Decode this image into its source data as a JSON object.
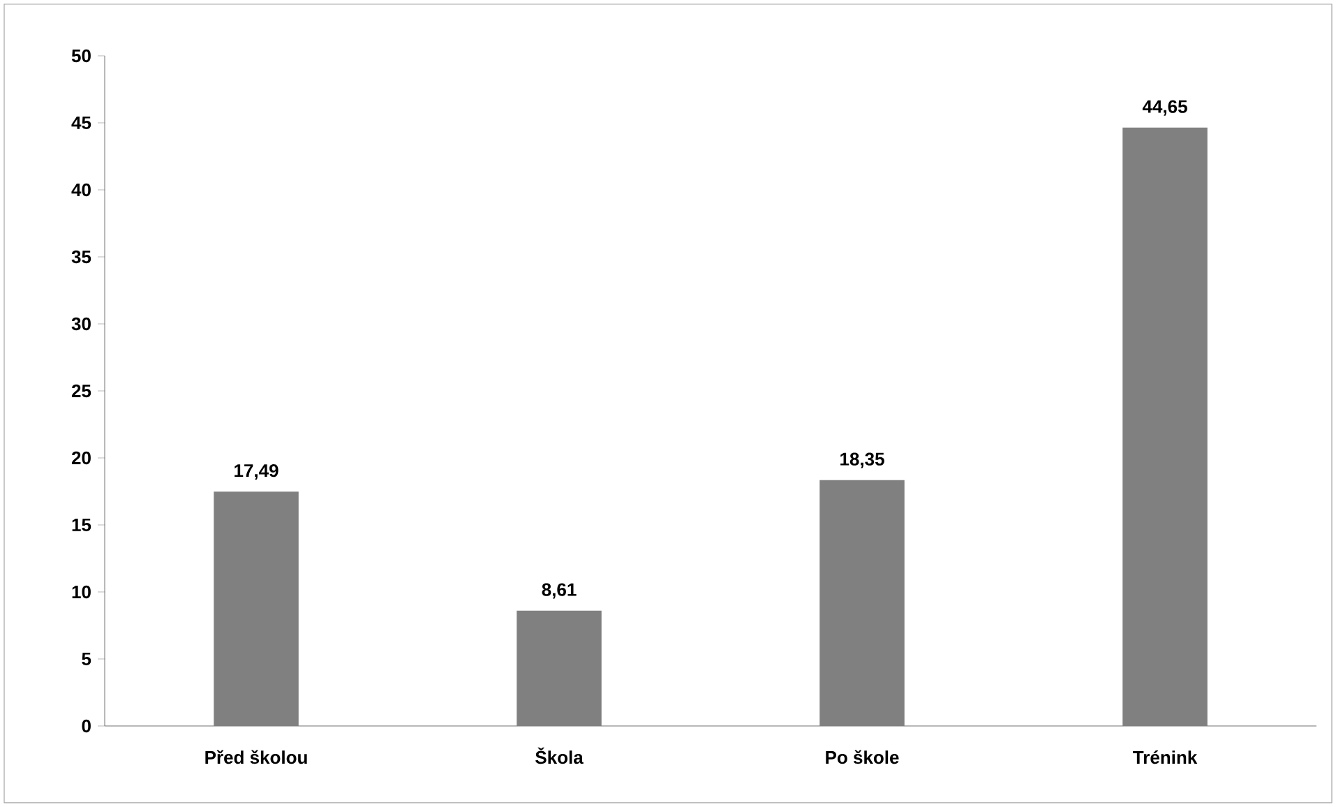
{
  "chart_data": {
    "type": "bar",
    "categories": [
      "Před školou",
      "Škola",
      "Po škole",
      "Trénink"
    ],
    "values": [
      17.49,
      8.61,
      18.35,
      44.65
    ],
    "value_labels": [
      "17,49",
      "8,61",
      "18,35",
      "44,65"
    ],
    "color": "#808080",
    "ylim": [
      0,
      50
    ],
    "yticks": [
      0,
      5,
      10,
      15,
      20,
      25,
      30,
      35,
      40,
      45,
      50
    ]
  }
}
